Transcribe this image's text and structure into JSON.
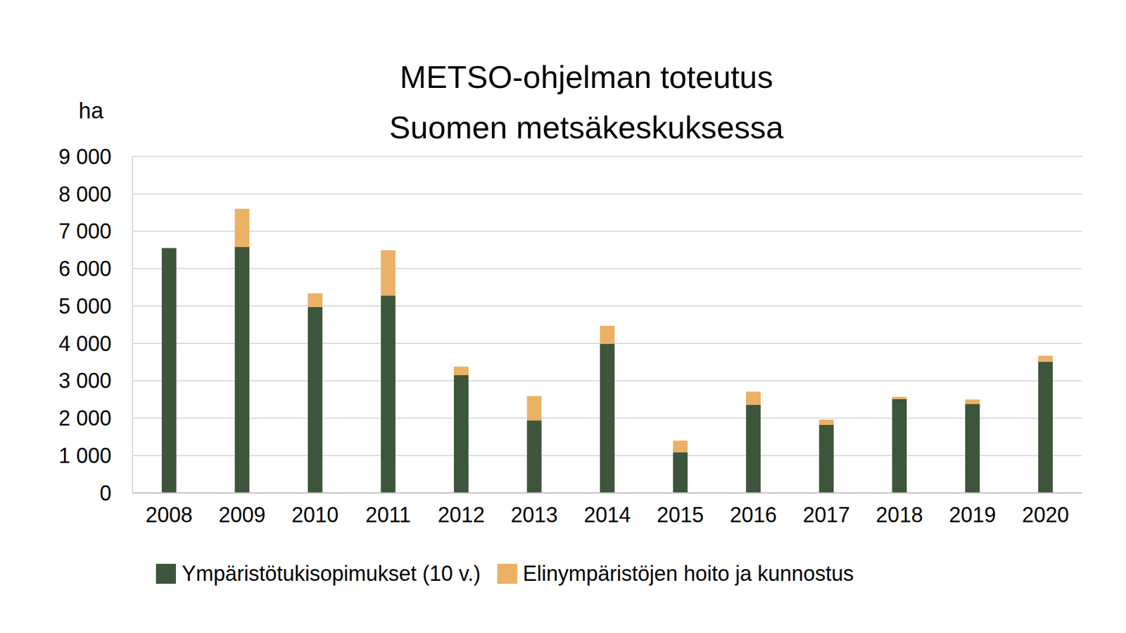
{
  "chart_data": {
    "type": "bar",
    "title": "METSO-ohjelman toteutus Suomen metsäkeskuksessa",
    "y_label": "ha",
    "categories": [
      "2008",
      "2009",
      "2010",
      "2011",
      "2012",
      "2013",
      "2014",
      "2015",
      "2016",
      "2017",
      "2018",
      "2019",
      "2020"
    ],
    "series": [
      {
        "name": "Ympäristötukisopimukset (10 v.)",
        "color": "#3d553a",
        "values": [
          6550,
          6580,
          4970,
          5280,
          3150,
          1940,
          3990,
          1090,
          2360,
          1820,
          2510,
          2380,
          3510
        ]
      },
      {
        "name": "Elinympäristöjen hoito ja kunnostus",
        "color": "#ebb165",
        "values": [
          0,
          1020,
          370,
          1210,
          230,
          650,
          480,
          310,
          350,
          140,
          60,
          120,
          160
        ]
      }
    ],
    "stacked": true,
    "grid": true,
    "ylim": [
      0,
      9000
    ],
    "yticks": [
      0,
      {
        "value": 1000,
        "label": "1 000"
      },
      {
        "value": 2000,
        "label": "2 000"
      },
      {
        "value": 3000,
        "label": "3 000"
      },
      {
        "value": 4000,
        "label": "4 000"
      },
      {
        "value": 5000,
        "label": "5 000"
      },
      {
        "value": 6000,
        "label": "6 000"
      },
      {
        "value": 7000,
        "label": "7 000"
      },
      {
        "value": 8000,
        "label": "8 000"
      },
      {
        "value": 9000,
        "label": "9 000"
      }
    ]
  }
}
